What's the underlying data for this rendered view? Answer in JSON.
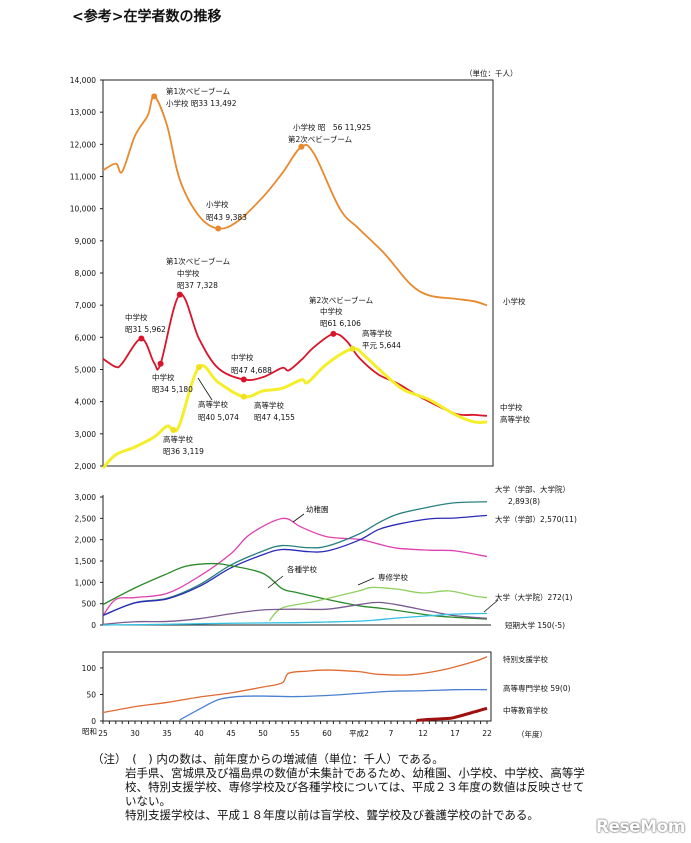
{
  "page": {
    "title": "<参考>在学者数の推移",
    "unit": "（単位：千人）",
    "notes": [
      "（注）　(　) 内の数は、前年度からの増減値（単位：千人）である。",
      "岩手県、宮城県及び福島県の数値が未集計であるため、幼稚園、小学校、中学校、高等学校、特別支援学校、専修学校及び各種学校については、平成２３年度の数値は反映させていない。",
      "特別支援学校は、平成１８年度以前は盲学校、聾学校及び養護学校の計である。"
    ],
    "logo": "ReseMom"
  },
  "chart_data": [
    {
      "type": "line",
      "ylim": [
        2000,
        14000
      ],
      "yticks": [
        "2,000",
        "3,000",
        "4,000",
        "5,000",
        "6,000",
        "7,000",
        "8,000",
        "9,000",
        "10,000",
        "11,000",
        "12,000",
        "13,000",
        "14,000"
      ],
      "grid": false,
      "series": [
        {
          "name": "小学校",
          "color": "#e8892e",
          "points": [
            [
              "昭和25",
              11191
            ],
            [
              "昭和27",
              11400
            ],
            [
              "昭和28",
              11150
            ],
            [
              "昭和30",
              12267
            ],
            [
              "昭和32",
              12900
            ],
            [
              "昭和33",
              13492
            ],
            [
              "昭和35",
              12590
            ],
            [
              "昭和37",
              10900
            ],
            [
              "昭和40",
              9775
            ],
            [
              "昭和43",
              9383
            ],
            [
              "昭和46",
              9600
            ],
            [
              "昭和50",
              10365
            ],
            [
              "昭和53",
              11100
            ],
            [
              "昭和56",
              11925
            ],
            [
              "昭和58",
              11700
            ],
            [
              "昭和62",
              10000
            ],
            [
              "平成2",
              9373
            ],
            [
              "平成6",
              8600
            ],
            [
              "平成10",
              7660
            ],
            [
              "平成13",
              7300
            ],
            [
              "平成17",
              7200
            ],
            [
              "平成20",
              7120
            ],
            [
              "平成22",
              6993
            ]
          ]
        },
        {
          "name": "中学校",
          "color": "#d9142a",
          "points": [
            [
              "昭和25",
              5333
            ],
            [
              "昭和27",
              5080
            ],
            [
              "昭和28",
              5190
            ],
            [
              "昭和31",
              5962
            ],
            [
              "昭和33",
              5200
            ],
            [
              "昭和34",
              5180
            ],
            [
              "昭和37",
              7328
            ],
            [
              "昭和40",
              5957
            ],
            [
              "昭和43",
              5040
            ],
            [
              "昭和47",
              4688
            ],
            [
              "昭和50",
              4762
            ],
            [
              "昭和53",
              5050
            ],
            [
              "昭和54",
              4970
            ],
            [
              "昭和56",
              5300
            ],
            [
              "昭和58",
              5700
            ],
            [
              "昭和61",
              6106
            ],
            [
              "昭和63",
              5900
            ],
            [
              "平成2",
              5370
            ],
            [
              "平成5",
              4850
            ],
            [
              "平成8",
              4570
            ],
            [
              "平成12",
              4100
            ],
            [
              "平成17",
              3630
            ],
            [
              "平成20",
              3590
            ],
            [
              "平成22",
              3558
            ]
          ]
        },
        {
          "name": "高等学校",
          "color": "#f5ee2a",
          "points": [
            [
              "昭和25",
              1935
            ],
            [
              "昭和27",
              2350
            ],
            [
              "昭和30",
              2592
            ],
            [
              "昭和33",
              2900
            ],
            [
              "昭和35",
              3240
            ],
            [
              "昭和36",
              3119
            ],
            [
              "昭和37",
              3300
            ],
            [
              "昭和40",
              5074
            ],
            [
              "昭和43",
              4600
            ],
            [
              "昭和47",
              4155
            ],
            [
              "昭和50",
              4333
            ],
            [
              "昭和53",
              4414
            ],
            [
              "昭和56",
              4682
            ],
            [
              "昭和57",
              4601
            ],
            [
              "昭和60",
              5178
            ],
            [
              "平成1",
              5644
            ],
            [
              "平成3",
              5400
            ],
            [
              "平成6",
              4850
            ],
            [
              "平成9",
              4370
            ],
            [
              "平成13",
              4060
            ],
            [
              "平成17",
              3600
            ],
            [
              "平成20",
              3370
            ],
            [
              "平成22",
              3368
            ]
          ]
        }
      ],
      "markers": [
        [
          "小学校",
          "昭和33",
          13492
        ],
        [
          "小学校",
          "昭和43",
          9383
        ],
        [
          "小学校",
          "昭和56",
          11925
        ],
        [
          "中学校",
          "昭和31",
          5962
        ],
        [
          "中学校",
          "昭和34",
          5180
        ],
        [
          "中学校",
          "昭和37",
          7328
        ],
        [
          "中学校",
          "昭和47",
          4688
        ],
        [
          "中学校",
          "昭和61",
          6106
        ],
        [
          "高等学校",
          "昭和36",
          3119
        ],
        [
          "高等学校",
          "昭和40",
          5074
        ],
        [
          "高等学校",
          "昭和47",
          4155
        ],
        [
          "高等学校",
          "平成1",
          5644
        ]
      ],
      "annotations": [
        "第1次ベビーブーム",
        "小学校 昭33 13,492",
        "小学校",
        "昭43 9,383",
        "小学校 昭　56 11,925",
        "第2次ベビーブーム",
        "第1次ベビーブーム",
        "中学校",
        "昭37 7,328",
        "中学校",
        "昭31 5,962",
        "中学校",
        "昭34 5,180",
        "中学校",
        "昭47 4,688",
        "高等学校",
        "昭40 5,074",
        "高等学校",
        "昭47 4,155",
        "高等学校",
        "昭36 3,119",
        "第2次ベビーブーム",
        "中学校",
        "昭61 6,106",
        "高等学校",
        "平元 5,644"
      ],
      "right_labels": [
        "小学校",
        "中学校",
        "高等学校"
      ]
    },
    {
      "type": "line",
      "ylim": [
        0,
        3000
      ],
      "yticks": [
        "0",
        "500",
        "1,000",
        "1,500",
        "2,000",
        "2,500",
        "3,000"
      ],
      "series": [
        {
          "name": "幼稚園",
          "color": "#e040b0",
          "points": [
            [
              "昭和25",
              220
            ],
            [
              "昭和27",
              600
            ],
            [
              "昭和30",
              643
            ],
            [
              "昭和35",
              742
            ],
            [
              "昭和40",
              1137
            ],
            [
              "昭和45",
              1674
            ],
            [
              "昭和48",
              2129
            ],
            [
              "昭和53",
              2497
            ],
            [
              "昭和56",
              2293
            ],
            [
              "昭和60",
              2068
            ],
            [
              "平成2",
              2008
            ],
            [
              "平成5",
              1900
            ],
            [
              "平成8",
              1800
            ],
            [
              "平成13",
              1753
            ],
            [
              "平成17",
              1738
            ],
            [
              "平成22",
              1605
            ]
          ]
        },
        {
          "name": "大学（学部、大学院）",
          "color": "#2a8080",
          "points": [
            [
              "昭和25",
              225
            ],
            [
              "昭和30",
              523
            ],
            [
              "昭和35",
              626
            ],
            [
              "昭和40",
              938
            ],
            [
              "昭和45",
              1407
            ],
            [
              "昭和50",
              1734
            ],
            [
              "昭和53",
              1862
            ],
            [
              "昭和57",
              1813
            ],
            [
              "昭和60",
              1848
            ],
            [
              "平成2",
              2133
            ],
            [
              "平成5",
              2389
            ],
            [
              "平成8",
              2597
            ],
            [
              "平成13",
              2766
            ],
            [
              "平成17",
              2865
            ],
            [
              "平成22",
              2889
            ]
          ]
        },
        {
          "name": "大学（学部）",
          "color": "#2a2ab8",
          "points": [
            [
              "昭和25",
              225
            ],
            [
              "昭和30",
              518
            ],
            [
              "昭和35",
              610
            ],
            [
              "昭和40",
              900
            ],
            [
              "昭和45",
              1340
            ],
            [
              "昭和50",
              1650
            ],
            [
              "昭和53",
              1770
            ],
            [
              "昭和57",
              1720
            ],
            [
              "昭和60",
              1734
            ],
            [
              "平成2",
              1988
            ],
            [
              "平成5",
              2234
            ],
            [
              "平成8",
              2360
            ],
            [
              "平成13",
              2487
            ],
            [
              "平成17",
              2508
            ],
            [
              "平成22",
              2570
            ]
          ]
        },
        {
          "name": "各種学校",
          "color": "#2a8a2a",
          "points": [
            [
              "昭和25",
              480
            ],
            [
              "昭和30",
              870
            ],
            [
              "昭和35",
              1200
            ],
            [
              "昭和38",
              1380
            ],
            [
              "昭和42",
              1440
            ],
            [
              "昭和45",
              1390
            ],
            [
              "昭和50",
              1210
            ],
            [
              "昭和53",
              850
            ],
            [
              "昭和55",
              770
            ],
            [
              "昭和60",
              600
            ],
            [
              "平成2",
              450
            ],
            [
              "平成5",
              400
            ],
            [
              "平成8",
              340
            ],
            [
              "平成13",
              230
            ],
            [
              "平成17",
              180
            ],
            [
              "平成22",
              140
            ]
          ]
        },
        {
          "name": "専修学校",
          "color": "#90d060",
          "points": [
            [
              "昭和51",
              100
            ],
            [
              "昭和53",
              400
            ],
            [
              "昭和58",
              550
            ],
            [
              "平成2",
              800
            ],
            [
              "平成4",
              880
            ],
            [
              "平成8",
              840
            ],
            [
              "平成12",
              750
            ],
            [
              "平成16",
              800
            ],
            [
              "平成20",
              680
            ],
            [
              "平成22",
              640
            ]
          ]
        },
        {
          "name": "短期大学",
          "color": "#7a5a90",
          "points": [
            [
              "昭和25",
              15
            ],
            [
              "昭和30",
              77
            ],
            [
              "昭和35",
              83
            ],
            [
              "昭和40",
              148
            ],
            [
              "昭和45",
              263
            ],
            [
              "昭和50",
              354
            ],
            [
              "昭和55",
              371
            ],
            [
              "昭和60",
              371
            ],
            [
              "平成2",
              479
            ],
            [
              "平成5",
              530
            ],
            [
              "平成8",
              473
            ],
            [
              "平成13",
              327
            ],
            [
              "平成17",
              219
            ],
            [
              "平成22",
              155
            ]
          ]
        },
        {
          "name": "大学（大学院）",
          "color": "#30c0e0",
          "points": [
            [
              "昭和25",
              0
            ],
            [
              "昭和35",
              16
            ],
            [
              "昭和45",
              41
            ],
            [
              "昭和55",
              54
            ],
            [
              "昭和60",
              70
            ],
            [
              "平成2",
              90
            ],
            [
              "平成5",
              122
            ],
            [
              "平成8",
              164
            ],
            [
              "平成13",
              216
            ],
            [
              "平成17",
              254
            ],
            [
              "平成22",
              272
            ]
          ]
        }
      ],
      "annotations": [
        "幼稚園",
        "各種学校",
        "専修学校"
      ],
      "right_labels": [
        "大学（学部、大学院）",
        "2,893(8)",
        "大学（学部）2,570(11)",
        "大学（大学院）272(1)",
        "短期大学 150(-5)"
      ]
    },
    {
      "type": "line",
      "ylim": [
        0,
        130
      ],
      "yticks": [
        "0",
        "50",
        "100"
      ],
      "series": [
        {
          "name": "特別支援学校",
          "color": "#e06a30",
          "points": [
            [
              "昭和25",
              16
            ],
            [
              "昭和30",
              27
            ],
            [
              "昭和35",
              35
            ],
            [
              "昭和40",
              45
            ],
            [
              "昭和45",
              53
            ],
            [
              "昭和50",
              64
            ],
            [
              "昭和53",
              72
            ],
            [
              "昭和54",
              90
            ],
            [
              "昭和57",
              94
            ],
            [
              "昭和60",
              96
            ],
            [
              "平成2",
              93
            ],
            [
              "平成5",
              88
            ],
            [
              "平成10",
              87
            ],
            [
              "平成15",
              96
            ],
            [
              "平成20",
              112
            ],
            [
              "平成22",
              121
            ]
          ]
        },
        {
          "name": "高等専門学校",
          "color": "#4a80d0",
          "points": [
            [
              "昭和37",
              2
            ],
            [
              "昭和40",
              22
            ],
            [
              "昭和43",
              40
            ],
            [
              "昭和46",
              46
            ],
            [
              "昭和50",
              47
            ],
            [
              "昭和55",
              46
            ],
            [
              "昭和60",
              48
            ],
            [
              "平成2",
              52
            ],
            [
              "平成7",
              56
            ],
            [
              "平成12",
              57
            ],
            [
              "平成17",
              59
            ],
            [
              "平成22",
              59
            ]
          ]
        },
        {
          "name": "中等教育学校",
          "color": "#a01010",
          "points": [
            [
              "平成11",
              1
            ],
            [
              "平成13",
              3
            ],
            [
              "平成16",
              5
            ],
            [
              "平成17",
              7
            ],
            [
              "平成20",
              17
            ],
            [
              "平成22",
              24
            ]
          ]
        }
      ],
      "right_labels": [
        "特別支援学校",
        "高等専門学校 59(0)",
        "中等教育学校"
      ],
      "xticks": [
        "25",
        "30",
        "35",
        "40",
        "45",
        "50",
        "55",
        "60",
        "平成2",
        "7",
        "12",
        "17",
        "22"
      ],
      "xera": "昭和",
      "xlabel": "（年度）"
    }
  ]
}
